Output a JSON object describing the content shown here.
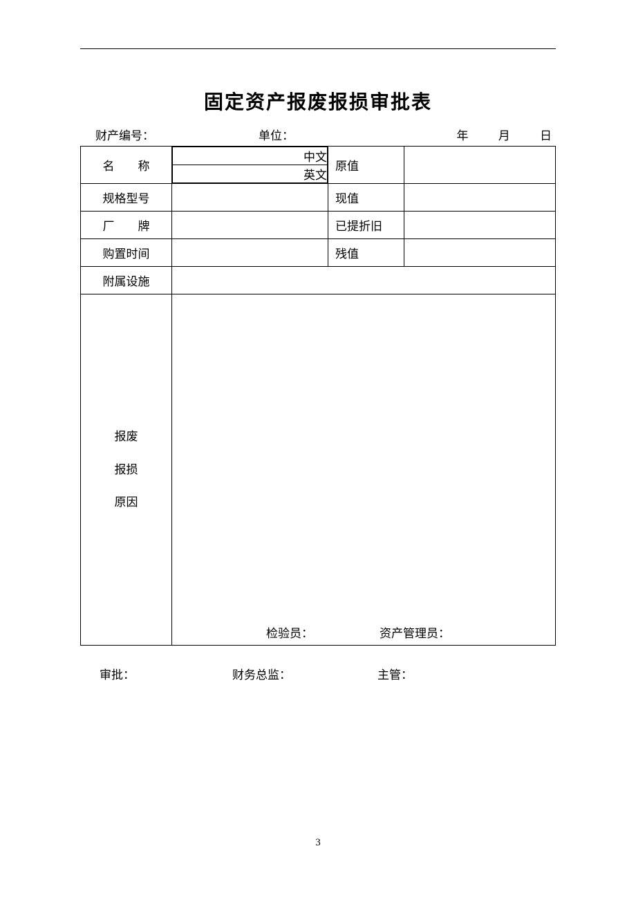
{
  "document": {
    "title": "固定资产报废报损审批表",
    "page_number": "3",
    "background_color": "#ffffff",
    "border_color": "#000000",
    "font_family": "SimSun",
    "title_fontsize": 28,
    "body_fontsize": 17
  },
  "header": {
    "asset_no_label": "财产编号：",
    "unit_label": "单位：",
    "year_label": "年",
    "month_label": "月",
    "day_label": "日"
  },
  "table": {
    "rows": {
      "name": {
        "label": "名　　称",
        "sub_cn": "中文",
        "sub_en": "英文",
        "value_cn": "",
        "value_en": "",
        "right_label": "原值",
        "right_value": ""
      },
      "spec": {
        "label": "规格型号",
        "value": "",
        "right_label": "现值",
        "right_value": ""
      },
      "brand": {
        "label": "厂　　牌",
        "value": "",
        "right_label": "已提折旧",
        "right_value": ""
      },
      "purchase": {
        "label": "购置时间",
        "value": "",
        "right_label": "残值",
        "right_value": ""
      },
      "attached": {
        "label": "附属设施",
        "value": ""
      },
      "reason": {
        "label_line1": "报废",
        "label_line2": "报损",
        "label_line3": "原因",
        "inspector_label": "检验员：",
        "manager_label": "资产管理员：",
        "inspector_value": "",
        "manager_value": ""
      }
    }
  },
  "footer": {
    "approval_label": "审批：",
    "finance_label": "财务总监：",
    "supervisor_label": "主管：",
    "approval_value": "",
    "finance_value": "",
    "supervisor_value": ""
  }
}
